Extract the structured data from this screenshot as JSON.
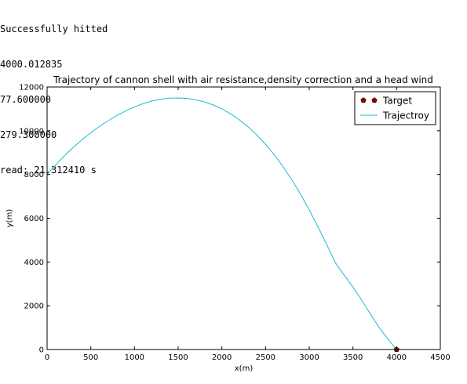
{
  "console": {
    "lines": [
      "Successfully hitted",
      "4000.012835",
      "77.600000",
      "279.300000",
      "read: 21.312410 s"
    ]
  },
  "chart_data": {
    "type": "line",
    "title": "Trajectory of cannon shell with air resistance,density correction and a head wind",
    "xlabel": "x(m)",
    "ylabel": "y(m)",
    "xlim": [
      0,
      4500
    ],
    "ylim": [
      0,
      12000
    ],
    "xticks": [
      0,
      500,
      1000,
      1500,
      2000,
      2500,
      3000,
      3500,
      4000,
      4500
    ],
    "yticks": [
      0,
      2000,
      4000,
      6000,
      8000,
      10000,
      12000
    ],
    "grid": false,
    "legend_position": "top-right",
    "series": [
      {
        "name": "Trajectroy",
        "color": "#17becf",
        "x": [
          0,
          100,
          200,
          300,
          400,
          500,
          600,
          700,
          800,
          900,
          1000,
          1100,
          1200,
          1300,
          1400,
          1500,
          1600,
          1700,
          1800,
          1900,
          2000,
          2100,
          2200,
          2300,
          2400,
          2500,
          2600,
          2700,
          2800,
          2900,
          3000,
          3100,
          3200,
          3300,
          3400,
          3500,
          3600,
          3700,
          3800,
          3900,
          4000
        ],
        "y": [
          8000,
          8450,
          8860,
          9240,
          9590,
          9910,
          10200,
          10460,
          10700,
          10910,
          11090,
          11240,
          11360,
          11440,
          11490,
          11500,
          11480,
          11420,
          11320,
          11180,
          11000,
          10770,
          10500,
          10180,
          9810,
          9380,
          8900,
          8360,
          7760,
          7100,
          6380,
          5610,
          4800,
          3960,
          3400,
          2860,
          2260,
          1620,
          1000,
          480,
          0
        ]
      },
      {
        "name": "Target",
        "color": "#8b0000",
        "marker": "pentagon",
        "x": [
          4000
        ],
        "y": [
          0
        ]
      }
    ]
  }
}
